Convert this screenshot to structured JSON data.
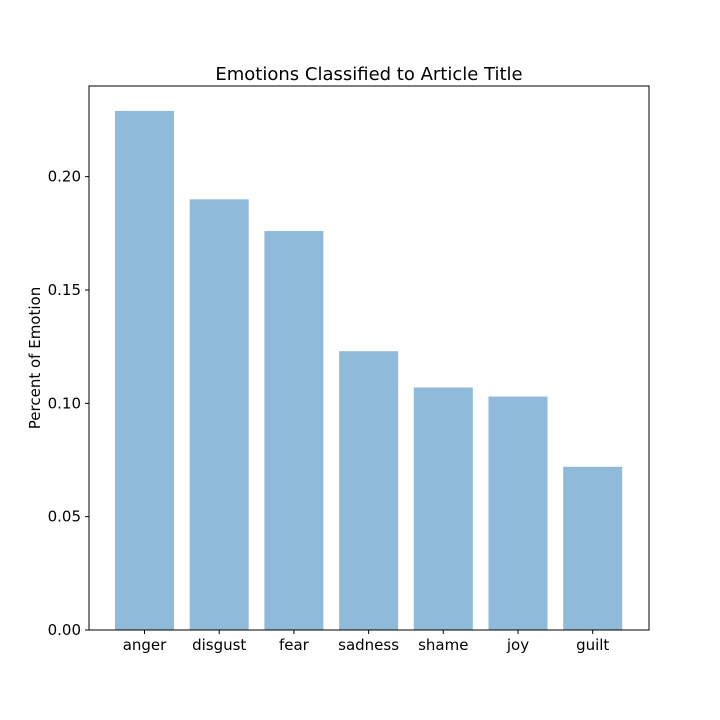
{
  "chart_data": {
    "type": "bar",
    "title": "Emotions Classified to Article Title",
    "xlabel": "",
    "ylabel": "Percent of Emotion",
    "categories": [
      "anger",
      "disgust",
      "fear",
      "sadness",
      "shame",
      "joy",
      "guilt"
    ],
    "values": [
      0.229,
      0.19,
      0.176,
      0.123,
      0.107,
      0.103,
      0.072
    ],
    "ylim": [
      0,
      0.24
    ],
    "yticks": [
      0.0,
      0.05,
      0.1,
      0.15,
      0.2
    ],
    "ytick_labels": [
      "0.00",
      "0.05",
      "0.10",
      "0.15",
      "0.20"
    ],
    "bar_color": "#8fbad9",
    "grid": false,
    "legend": "none"
  }
}
